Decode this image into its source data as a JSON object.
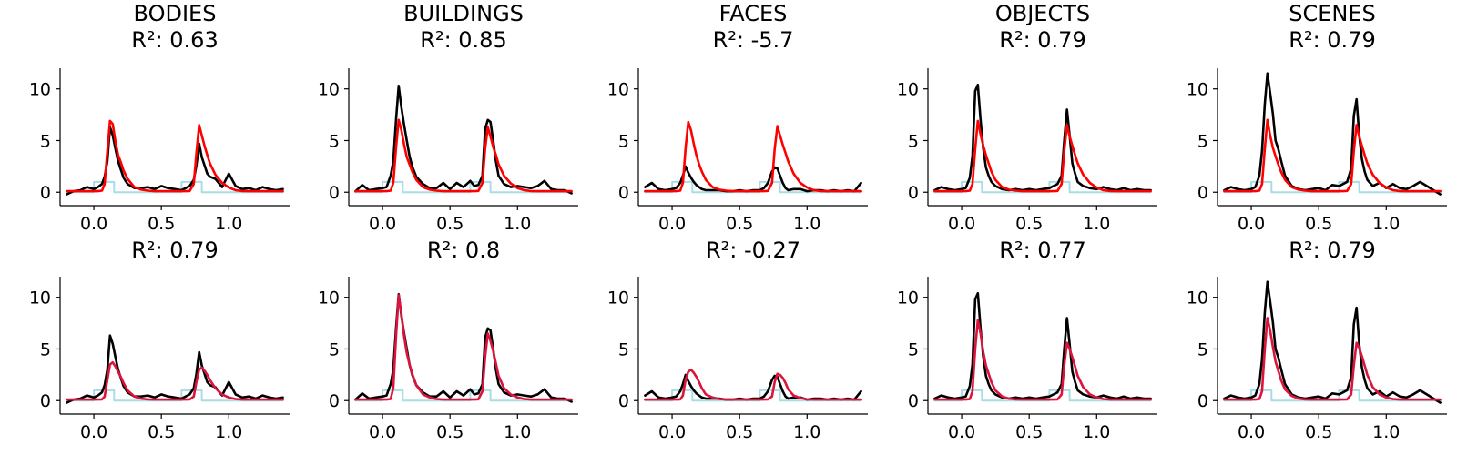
{
  "chart_data": {
    "type": "line",
    "grid": false,
    "legend": "none",
    "shared_axes": {
      "xlim": [
        -0.25,
        1.45
      ],
      "ylim": [
        -1.3,
        12
      ],
      "xticks": [
        0.0,
        0.5,
        1.0
      ],
      "xtick_labels": [
        "0.0",
        "0.5",
        "1.0"
      ],
      "yticks": [
        0,
        5,
        10
      ],
      "ytick_labels": [
        "0",
        "5",
        "10"
      ]
    },
    "colors": {
      "observed": "#000000",
      "model_row1": "#ff0000",
      "model_row2": "#dc143c",
      "stimulus": "#a8dde6"
    },
    "stimulus": {
      "x": [
        -0.2,
        0.0,
        0.0,
        0.15,
        0.15,
        0.65,
        0.65,
        0.8,
        0.8,
        1.4
      ],
      "y": [
        0,
        0,
        1,
        1,
        0,
        0,
        1,
        1,
        0,
        0
      ]
    },
    "t": [
      -0.2,
      -0.15,
      -0.1,
      -0.05,
      0,
      0.03,
      0.06,
      0.08,
      0.1,
      0.12,
      0.14,
      0.16,
      0.18,
      0.2,
      0.22,
      0.25,
      0.3,
      0.35,
      0.4,
      0.45,
      0.5,
      0.55,
      0.6,
      0.65,
      0.68,
      0.71,
      0.74,
      0.76,
      0.78,
      0.8,
      0.82,
      0.84,
      0.86,
      0.9,
      0.95,
      1,
      1.05,
      1.1,
      1.15,
      1.2,
      1.25,
      1.3,
      1.35,
      1.4
    ],
    "panels": [
      {
        "row": 1,
        "title": "BODIES",
        "r2_label": "R²: 0.63",
        "observed": [
          -0.2,
          0.1,
          0.2,
          0.5,
          0.3,
          0.5,
          0.8,
          1.5,
          3,
          6.3,
          5.5,
          4.2,
          3,
          2.2,
          1.4,
          0.8,
          0.4,
          0.4,
          0.5,
          0.3,
          0.6,
          0.4,
          0.3,
          0.2,
          0.4,
          0.6,
          1.2,
          2.6,
          4.7,
          3.4,
          2.6,
          1.8,
          1.5,
          1.3,
          0.5,
          1.8,
          0.6,
          0.3,
          0.4,
          0.2,
          0.5,
          0.3,
          0.2,
          0.3
        ],
        "model": [
          0.1,
          0.1,
          0.1,
          0.1,
          0.1,
          0.1,
          0.15,
          0.8,
          4,
          6.9,
          6.6,
          4.9,
          3.6,
          2.9,
          2.1,
          1.3,
          0.5,
          0.25,
          0.15,
          0.1,
          0.1,
          0.1,
          0.1,
          0.1,
          0.1,
          0.12,
          0.8,
          3.8,
          6.5,
          5.5,
          4.5,
          3.6,
          2.8,
          1.7,
          0.9,
          0.45,
          0.2,
          0.12,
          0.1,
          0.1,
          0.1,
          0.1,
          0.1,
          0.1
        ]
      },
      {
        "row": 1,
        "title": "BUILDINGS",
        "r2_label": "R²: 0.85",
        "observed": [
          0.1,
          0.7,
          0.2,
          0.3,
          0.4,
          0.5,
          1.6,
          3,
          7,
          10.3,
          8.2,
          6.5,
          5,
          3.5,
          2.5,
          1.5,
          0.8,
          0.4,
          0.4,
          0.9,
          0.3,
          0.9,
          0.5,
          1.1,
          0.6,
          0.7,
          1.6,
          6.1,
          7,
          6.8,
          5,
          3,
          1.6,
          0.8,
          0.5,
          0.6,
          0.5,
          0.4,
          0.6,
          1.1,
          0.3,
          0.2,
          0.2,
          -0.1
        ],
        "model": [
          0.1,
          0.1,
          0.1,
          0.1,
          0.1,
          0.1,
          0.15,
          0.9,
          4.3,
          7,
          6,
          4.6,
          3.4,
          2.7,
          2,
          1.2,
          0.5,
          0.25,
          0.15,
          0.1,
          0.1,
          0.1,
          0.1,
          0.1,
          0.1,
          0.13,
          0.9,
          4.2,
          6.3,
          5.4,
          4.4,
          3.6,
          2.7,
          1.6,
          0.85,
          0.4,
          0.2,
          0.12,
          0.1,
          0.1,
          0.1,
          0.1,
          0.1,
          0.1
        ]
      },
      {
        "row": 1,
        "title": "FACES",
        "r2_label": "R²: -5.7",
        "observed": [
          0.5,
          0.9,
          0.3,
          0.2,
          0.3,
          0.4,
          0.9,
          1.6,
          2.5,
          1.9,
          1.4,
          1,
          0.7,
          0.5,
          0.3,
          0.2,
          0.2,
          0.2,
          0.1,
          0.1,
          0.2,
          0.1,
          0.2,
          0.2,
          0.4,
          0.9,
          2,
          2.4,
          2.3,
          1.6,
          0.9,
          0.4,
          0.2,
          0.3,
          0.3,
          0.1,
          0.2,
          0.2,
          0.1,
          0.2,
          0.1,
          0.2,
          0.1,
          0.9
        ],
        "model": [
          0.1,
          0.1,
          0.1,
          0.1,
          0.1,
          0.1,
          0.15,
          0.9,
          4.3,
          6.8,
          6,
          4.7,
          3.6,
          2.7,
          2,
          1.2,
          0.5,
          0.25,
          0.15,
          0.1,
          0.1,
          0.1,
          0.1,
          0.1,
          0.1,
          0.13,
          0.9,
          4.2,
          6.4,
          5.5,
          4.6,
          3.8,
          3,
          1.8,
          0.9,
          0.45,
          0.2,
          0.12,
          0.1,
          0.1,
          0.1,
          0.1,
          0.1,
          0.1
        ]
      },
      {
        "row": 1,
        "title": "OBJECTS",
        "r2_label": "R²: 0.79",
        "observed": [
          0.2,
          0.5,
          0.3,
          0.2,
          0.3,
          0.4,
          1.4,
          3.5,
          9.8,
          10.4,
          7,
          4.2,
          2.4,
          1.6,
          1,
          0.6,
          0.3,
          0.2,
          0.3,
          0.2,
          0.3,
          0.2,
          0.3,
          0.4,
          0.6,
          0.8,
          1.6,
          5,
          8,
          5.5,
          2.8,
          1.8,
          1,
          0.6,
          0.4,
          0.3,
          0.5,
          0.3,
          0.2,
          0.4,
          0.2,
          0.3,
          0.2,
          0.2
        ],
        "model": [
          0.1,
          0.1,
          0.1,
          0.1,
          0.1,
          0.1,
          0.15,
          0.8,
          4.2,
          6.9,
          5.6,
          4.5,
          3.6,
          2.8,
          2,
          1.2,
          0.5,
          0.25,
          0.15,
          0.1,
          0.1,
          0.1,
          0.1,
          0.1,
          0.1,
          0.13,
          0.8,
          4,
          6.5,
          5.4,
          4.5,
          3.6,
          2.8,
          1.7,
          0.9,
          0.45,
          0.2,
          0.12,
          0.1,
          0.1,
          0.1,
          0.1,
          0.1,
          0.1
        ]
      },
      {
        "row": 1,
        "title": "SCENES",
        "r2_label": "R²: 0.79",
        "observed": [
          0.2,
          0.5,
          0.3,
          0.2,
          0.3,
          0.5,
          1.6,
          4,
          8.5,
          11.5,
          9.6,
          7.6,
          5,
          4.2,
          3.1,
          1.6,
          0.6,
          0.3,
          0.2,
          0.3,
          0.4,
          0.2,
          0.7,
          0.6,
          0.8,
          1,
          2.3,
          7.4,
          9,
          5.5,
          3.2,
          2,
          1.2,
          0.6,
          0.9,
          0.4,
          0.8,
          0.4,
          0.3,
          0.6,
          1,
          0.6,
          0.2,
          -0.2
        ],
        "model": [
          0.1,
          0.1,
          0.1,
          0.1,
          0.1,
          0.1,
          0.15,
          0.8,
          4.2,
          7,
          5.5,
          4.3,
          3.5,
          2.7,
          2,
          1.2,
          0.5,
          0.25,
          0.15,
          0.1,
          0.1,
          0.1,
          0.1,
          0.1,
          0.1,
          0.13,
          0.8,
          4,
          6.5,
          5.4,
          4.5,
          3.6,
          2.8,
          1.7,
          0.9,
          0.45,
          0.2,
          0.12,
          0.1,
          0.1,
          0.1,
          0.1,
          0.1,
          0.1
        ]
      },
      {
        "row": 2,
        "title": "",
        "r2_label": "R²: 0.79",
        "observed": [
          -0.2,
          0.1,
          0.2,
          0.5,
          0.3,
          0.5,
          0.8,
          1.5,
          3,
          6.3,
          5.5,
          4.2,
          3,
          2.2,
          1.4,
          0.8,
          0.4,
          0.4,
          0.5,
          0.3,
          0.6,
          0.4,
          0.3,
          0.2,
          0.4,
          0.6,
          1.2,
          2.6,
          4.7,
          3.4,
          2.6,
          1.8,
          1.5,
          1.3,
          0.5,
          1.8,
          0.6,
          0.3,
          0.4,
          0.2,
          0.5,
          0.3,
          0.2,
          0.3
        ],
        "model": [
          0.1,
          0.1,
          0.1,
          0.1,
          0.1,
          0.1,
          0.12,
          0.4,
          2,
          3.5,
          3.7,
          3.3,
          2.8,
          2.3,
          1.7,
          1,
          0.4,
          0.2,
          0.12,
          0.1,
          0.1,
          0.1,
          0.1,
          0.1,
          0.1,
          0.11,
          0.4,
          1.8,
          3,
          3.2,
          2.9,
          2.5,
          2,
          1.2,
          0.6,
          0.3,
          0.15,
          0.1,
          0.1,
          0.1,
          0.1,
          0.1,
          0.1,
          0.1
        ]
      },
      {
        "row": 2,
        "title": "",
        "r2_label": "R²: 0.8",
        "observed": [
          0.1,
          0.7,
          0.2,
          0.3,
          0.4,
          0.5,
          1.6,
          3,
          7,
          10.3,
          8.2,
          6.5,
          5,
          3.5,
          2.5,
          1.5,
          0.8,
          0.4,
          0.4,
          0.9,
          0.3,
          0.9,
          0.5,
          1.1,
          0.6,
          0.7,
          1.6,
          6.1,
          7,
          6.8,
          5,
          3,
          1.6,
          0.8,
          0.5,
          0.6,
          0.5,
          0.4,
          0.6,
          1.1,
          0.3,
          0.2,
          0.2,
          -0.1
        ],
        "model": [
          0.1,
          0.1,
          0.1,
          0.1,
          0.1,
          0.1,
          0.15,
          1.2,
          6.2,
          10.2,
          8.4,
          6.2,
          4.6,
          3.5,
          2.6,
          1.5,
          0.6,
          0.3,
          0.15,
          0.1,
          0.1,
          0.1,
          0.1,
          0.1,
          0.1,
          0.13,
          0.9,
          4.2,
          6.5,
          5.8,
          4.8,
          3.6,
          2.4,
          1.2,
          0.6,
          0.3,
          0.15,
          0.1,
          0.1,
          0.1,
          0.1,
          0.1,
          0.1,
          0.1
        ]
      },
      {
        "row": 2,
        "title": "",
        "r2_label": "R²: -0.27",
        "observed": [
          0.5,
          0.9,
          0.3,
          0.2,
          0.3,
          0.4,
          0.9,
          1.6,
          2.5,
          1.9,
          1.4,
          1,
          0.7,
          0.5,
          0.3,
          0.2,
          0.2,
          0.2,
          0.1,
          0.1,
          0.2,
          0.1,
          0.2,
          0.2,
          0.4,
          0.9,
          2,
          2.4,
          2.3,
          1.6,
          0.9,
          0.4,
          0.2,
          0.3,
          0.3,
          0.1,
          0.2,
          0.2,
          0.1,
          0.2,
          0.1,
          0.2,
          0.1,
          0.9
        ],
        "model": [
          0.1,
          0.1,
          0.1,
          0.1,
          0.1,
          0.1,
          0.12,
          0.5,
          2,
          2.8,
          3,
          2.7,
          2.3,
          1.8,
          1.2,
          0.6,
          0.3,
          0.15,
          0.1,
          0.1,
          0.1,
          0.1,
          0.1,
          0.1,
          0.1,
          0.11,
          0.4,
          1.8,
          2.6,
          2.5,
          2.2,
          1.7,
          1.1,
          0.5,
          0.25,
          0.12,
          0.1,
          0.1,
          0.1,
          0.1,
          0.1,
          0.1,
          0.1,
          0.1
        ]
      },
      {
        "row": 2,
        "title": "",
        "r2_label": "R²: 0.77",
        "observed": [
          0.2,
          0.5,
          0.3,
          0.2,
          0.3,
          0.4,
          1.4,
          3.5,
          9.8,
          10.4,
          7,
          4.2,
          2.4,
          1.6,
          1,
          0.6,
          0.3,
          0.2,
          0.3,
          0.2,
          0.3,
          0.2,
          0.3,
          0.4,
          0.6,
          0.8,
          1.6,
          5,
          8,
          5.5,
          2.8,
          1.8,
          1,
          0.6,
          0.4,
          0.3,
          0.5,
          0.3,
          0.2,
          0.4,
          0.2,
          0.3,
          0.2,
          0.2
        ],
        "model": [
          0.1,
          0.1,
          0.1,
          0.1,
          0.1,
          0.1,
          0.15,
          0.9,
          5,
          7.8,
          6.5,
          4.7,
          3.4,
          2.6,
          1.8,
          1,
          0.4,
          0.2,
          0.12,
          0.1,
          0.1,
          0.1,
          0.1,
          0.1,
          0.1,
          0.12,
          0.6,
          3.4,
          5.6,
          5,
          4.2,
          3.3,
          2.4,
          1.3,
          0.6,
          0.3,
          0.15,
          0.1,
          0.1,
          0.1,
          0.1,
          0.1,
          0.1,
          0.1
        ]
      },
      {
        "row": 2,
        "title": "",
        "r2_label": "R²: 0.79",
        "observed": [
          0.2,
          0.5,
          0.3,
          0.2,
          0.3,
          0.5,
          1.6,
          4,
          8.5,
          11.5,
          9.6,
          7.6,
          5,
          4.2,
          3.1,
          1.6,
          0.6,
          0.3,
          0.2,
          0.3,
          0.4,
          0.2,
          0.7,
          0.6,
          0.8,
          1,
          2.3,
          7.4,
          9,
          5.5,
          3.2,
          2,
          1.2,
          0.6,
          0.9,
          0.4,
          0.8,
          0.4,
          0.3,
          0.6,
          1,
          0.6,
          0.2,
          -0.2
        ],
        "model": [
          0.1,
          0.1,
          0.1,
          0.1,
          0.1,
          0.1,
          0.15,
          0.9,
          5,
          8,
          6.8,
          5.2,
          3.8,
          2.9,
          2,
          1.1,
          0.45,
          0.2,
          0.12,
          0.1,
          0.1,
          0.1,
          0.1,
          0.1,
          0.1,
          0.12,
          0.6,
          3.4,
          5.6,
          5.1,
          4.3,
          3.4,
          2.5,
          1.3,
          0.6,
          0.3,
          0.15,
          0.1,
          0.1,
          0.1,
          0.1,
          0.1,
          0.1,
          0.1
        ]
      }
    ]
  }
}
